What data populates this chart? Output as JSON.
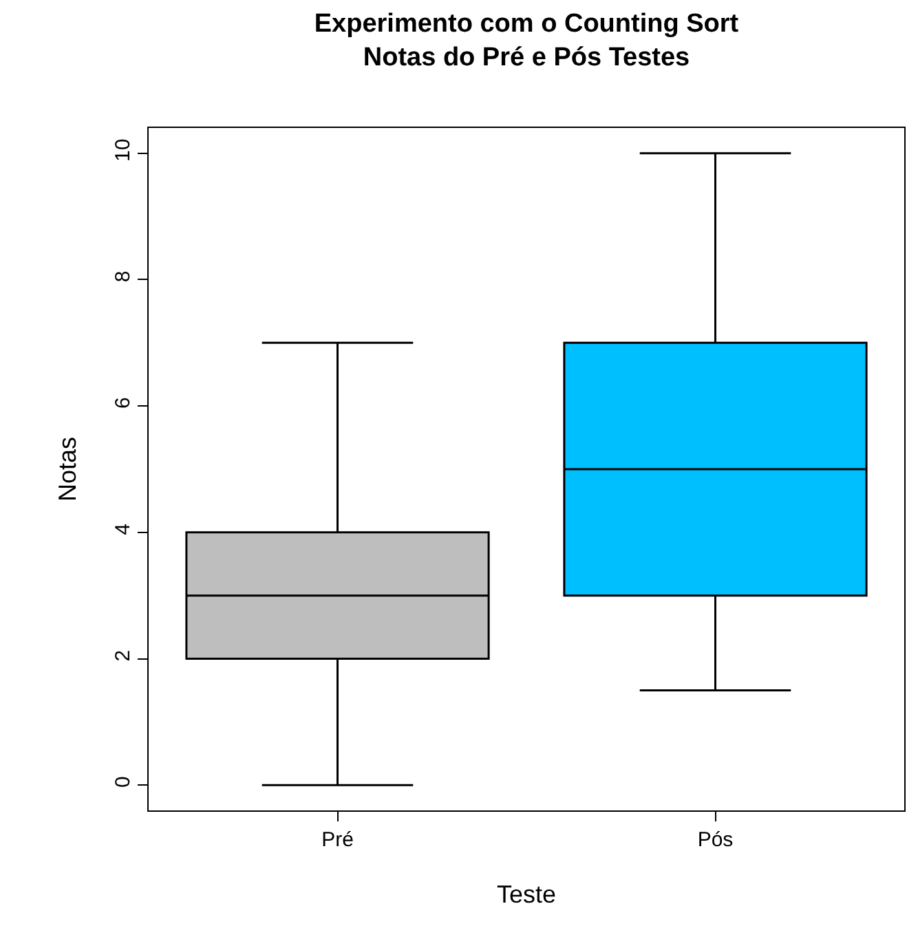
{
  "chart_data": {
    "type": "box",
    "title": "Experimento com o Counting Sort\nNotas do Pré e Pós Testes",
    "xlabel": "Teste",
    "ylabel": "Notas",
    "categories": [
      "Pré",
      "Pós"
    ],
    "colors": [
      "#bebebe",
      "#00bfff"
    ],
    "boxes": [
      {
        "low": 0,
        "q1": 2,
        "median": 3,
        "q3": 4,
        "high": 7
      },
      {
        "low": 1.5,
        "q1": 3,
        "median": 5,
        "q3": 7,
        "high": 10
      }
    ],
    "ylim": [
      -0.4,
      10.4
    ],
    "yticks": [
      0,
      2,
      4,
      6,
      8,
      10
    ],
    "legend": false
  }
}
